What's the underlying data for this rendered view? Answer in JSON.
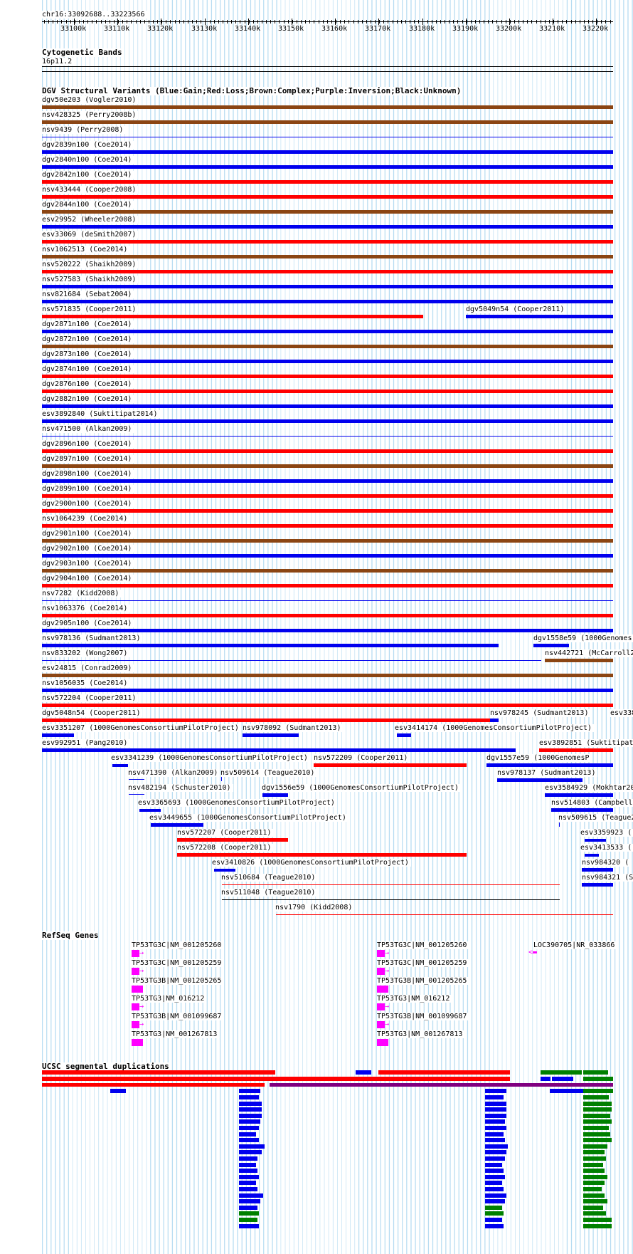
{
  "region": {
    "label": "chr16:33092688..33223566",
    "start": 33092688,
    "end": 33223566
  },
  "ruler": {
    "ticks": [
      "33100k",
      "33110k",
      "33120k",
      "33130k",
      "33140k",
      "33150k",
      "33160k",
      "33170k",
      "33180k",
      "33190k",
      "33200k",
      "33210k",
      "33220k"
    ]
  },
  "tracks": {
    "cytoband": {
      "title": "Cytogenetic Bands",
      "band": "16p11.2"
    },
    "dgv": {
      "title": "DGV Structural Variants (Blue:Gain;Red:Loss;Brown:Complex;Purple:Inversion;Black:Unknown)"
    },
    "refseq": {
      "title": "RefSeq Genes"
    },
    "segdup": {
      "title": "UCSC segmental duplications"
    }
  },
  "colors": {
    "gain": "#0000ee",
    "loss": "#ff0000",
    "complex": "#8b4513",
    "inversion": "#800080",
    "unknown": "#000000",
    "gene": "#ff00ff",
    "dup_red": "#ff0000",
    "dup_blue": "#0000ee",
    "dup_green": "#008000",
    "dup_purple": "#800080",
    "grid": "#7ac0e6"
  },
  "dgv_full_rows": [
    {
      "label": "dgv50e203 (Vogler2010)",
      "type": "complex"
    },
    {
      "label": "nsv428325 (Perry2008b)",
      "type": "complex"
    },
    {
      "label": "nsv9439 (Perry2008)",
      "type": "thin"
    },
    {
      "label": "dgv2839n100 (Coe2014)",
      "type": "gain"
    },
    {
      "label": "dgv2840n100 (Coe2014)",
      "type": "gain"
    },
    {
      "label": "dgv2842n100 (Coe2014)",
      "type": "loss"
    },
    {
      "label": "nsv433444 (Cooper2008)",
      "type": "loss"
    },
    {
      "label": "dgv2844n100 (Coe2014)",
      "type": "complex"
    },
    {
      "label": "esv29952 (Wheeler2008)",
      "type": "gain"
    },
    {
      "label": "esv33069 (deSmith2007)",
      "type": "loss"
    },
    {
      "label": "nsv1062513 (Coe2014)",
      "type": "complex"
    },
    {
      "label": "nsv520222 (Shaikh2009)",
      "type": "loss"
    },
    {
      "label": "nsv527583 (Shaikh2009)",
      "type": "gain"
    },
    {
      "label": "nsv821684 (Sebat2004)",
      "type": "gain"
    }
  ],
  "dgv_rows_b": [
    {
      "label": "dgv2871n100 (Coe2014)",
      "type": "gain"
    },
    {
      "label": "dgv2872n100 (Coe2014)",
      "type": "complex"
    },
    {
      "label": "dgv2873n100 (Coe2014)",
      "type": "gain"
    },
    {
      "label": "dgv2874n100 (Coe2014)",
      "type": "loss"
    },
    {
      "label": "dgv2876n100 (Coe2014)",
      "type": "loss"
    },
    {
      "label": "dgv2882n100 (Coe2014)",
      "type": "gain"
    },
    {
      "label": "esv3892840 (Suktitipat2014)",
      "type": "gain"
    },
    {
      "label": "nsv471500 (Alkan2009)",
      "type": "thin"
    },
    {
      "label": "dgv2896n100 (Coe2014)",
      "type": "loss"
    },
    {
      "label": "dgv2897n100 (Coe2014)",
      "type": "complex"
    },
    {
      "label": "dgv2898n100 (Coe2014)",
      "type": "gain"
    },
    {
      "label": "dgv2899n100 (Coe2014)",
      "type": "loss"
    },
    {
      "label": "dgv2900n100 (Coe2014)",
      "type": "loss"
    },
    {
      "label": "nsv1064239 (Coe2014)",
      "type": "loss"
    },
    {
      "label": "dgv2901n100 (Coe2014)",
      "type": "complex"
    },
    {
      "label": "dgv2902n100 (Coe2014)",
      "type": "gain"
    },
    {
      "label": "dgv2903n100 (Coe2014)",
      "type": "complex"
    },
    {
      "label": "dgv2904n100 (Coe2014)",
      "type": "loss"
    },
    {
      "label": "nsv7282 (Kidd2008)",
      "type": "thin"
    },
    {
      "label": "nsv1063376 (Coe2014)",
      "type": "loss"
    },
    {
      "label": "dgv2905n100 (Coe2014)",
      "type": "gain"
    }
  ],
  "dgv_misc": {
    "nsv571835": "nsv571835 (Cooper2011)",
    "dgv5049n54": "dgv5049n54 (Cooper2011)",
    "nsv978136": "nsv978136 (Sudmant2013)",
    "dgv1558e59": "dgv1558e59 (1000Genomes",
    "nsv833202": "nsv833202 (Wong2007)",
    "nsv442721": "nsv442721 (McCarroll2",
    "esv24815": "esv24815 (Conrad2009)",
    "nsv1056035": "nsv1056035 (Coe2014)",
    "nsv572204": "nsv572204 (Cooper2011)",
    "dgv5048n54": "dgv5048n54 (Cooper2011)",
    "nsv978245": "nsv978245 (Sudmant2013)",
    "esv338": "esv338",
    "esv3351207": "esv3351207 (1000GenomesConsortiumPilotProject)",
    "nsv978092": "nsv978092 (Sudmant2013)",
    "esv3414174": "esv3414174 (1000GenomesConsortiumPilotProject)",
    "esv992951": "esv992951 (Pang2010)",
    "esv3892851": "esv3892851 (Suktitipat",
    "esv3341239": "esv3341239 (1000GenomesConsortiumPilotProject)",
    "nsv572209": "nsv572209 (Cooper2011)",
    "dgv1557e59": "dgv1557e59 (1000GenomesP",
    "nsv471390": "nsv471390 (Alkan2009)",
    "nsv509614": "nsv509614 (Teague2010)",
    "nsv978137": "nsv978137 (Sudmant2013)",
    "nsv482194": "nsv482194 (Schuster2010)",
    "dgv1556e59": "dgv1556e59 (1000GenomesConsortiumPilotProject)",
    "esv3584929": "esv3584929 (Mokhtar20",
    "esv3365693": "esv3365693 (1000GenomesConsortiumPilotProject)",
    "nsv514803": "nsv514803 (Campbell2",
    "esv3449655": "esv3449655 (1000GenomesConsortiumPilotProject)",
    "nsv509615": "nsv509615 (Teague2",
    "nsv572207": "nsv572207 (Cooper2011)",
    "esv3359923": "esv3359923 (",
    "nsv572208": "nsv572208 (Cooper2011)",
    "esv3413533": "esv3413533 (",
    "esv3410826": "esv3410826 (1000GenomesConsortiumPilotProject)",
    "nsv984320": "nsv984320 (",
    "nsv510684": "nsv510684 (Teague2010)",
    "nsv984321": "nsv984321 (S",
    "nsv511048": "nsv511048 (Teague2010)",
    "nsv1790": "nsv1790 (Kidd2008)"
  },
  "genes": {
    "left": [
      "TP53TG3C|NM_001205260",
      "TP53TG3C|NM_001205259",
      "TP53TG3B|NM_001205265",
      "TP53TG3|NM_016212",
      "TP53TG3B|NM_001099687",
      "TP53TG3|NM_001267813"
    ],
    "right": [
      "TP53TG3C|NM_001205260",
      "TP53TG3C|NM_001205259",
      "TP53TG3B|NM_001205265",
      "TP53TG3|NM_016212",
      "TP53TG3B|NM_001099687",
      "TP53TG3|NM_001267813"
    ],
    "far": "LOC390705|NR_033866"
  }
}
